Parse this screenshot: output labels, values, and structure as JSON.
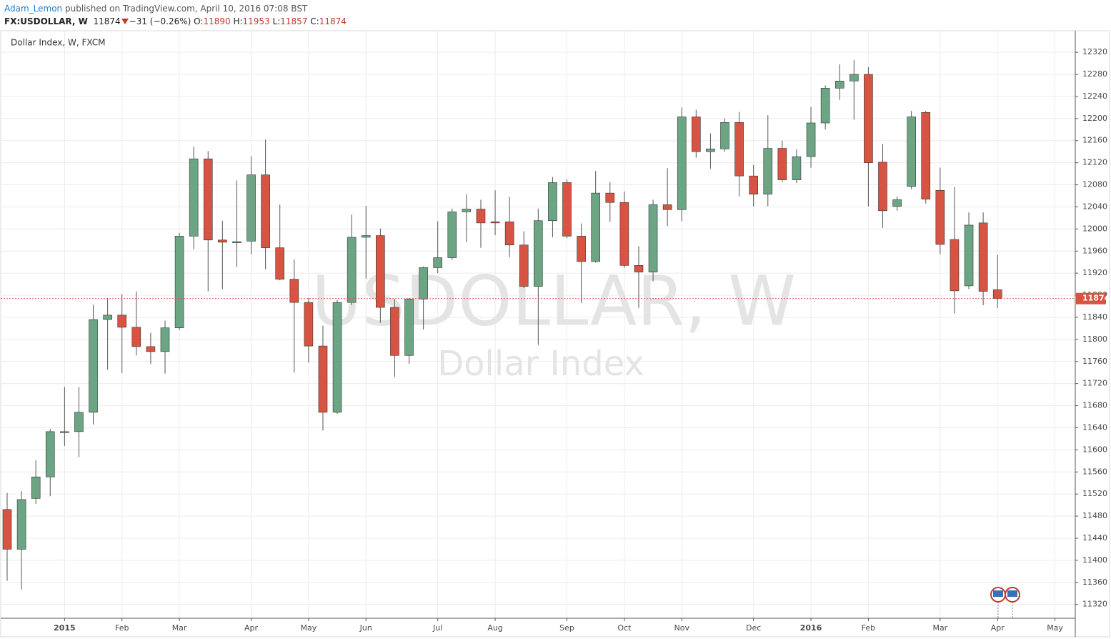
{
  "header": {
    "author": "Adam_Lemon",
    "published": "published on TradingView.com, April 10, 2016 07:08 BST",
    "symbol": "FX:USDOLLAR, W",
    "change": "−31 (−0.26%)",
    "ohlc_labels": [
      "O:",
      "H:",
      "L:",
      "C:"
    ]
  },
  "chart_data": {
    "type": "candlestick",
    "title": "Dollar Index, W, FXCM",
    "watermark": "USDOLLAR, W",
    "watermark_subtitle": "Dollar Index",
    "categories": [
      null,
      null,
      null,
      null,
      "2015",
      null,
      null,
      null,
      "Feb",
      null,
      null,
      null,
      "Mar",
      null,
      null,
      null,
      null,
      "Apr",
      null,
      null,
      null,
      "May",
      null,
      null,
      null,
      "Jun",
      null,
      null,
      null,
      null,
      "Jul",
      null,
      null,
      null,
      "Aug",
      null,
      null,
      null,
      null,
      "Sep",
      null,
      null,
      null,
      "Oct",
      null,
      null,
      null,
      "Nov",
      null,
      null,
      null,
      null,
      "Dec",
      null,
      null,
      null,
      "2016",
      null,
      null,
      null,
      "Feb",
      null,
      null,
      null,
      null,
      "Mar",
      null,
      null,
      null,
      "Apr",
      null,
      null,
      null,
      "May",
      null
    ],
    "open": [
      11492,
      11420,
      11512,
      11551,
      11632,
      11633,
      11668,
      11836,
      11844,
      11822,
      11787,
      11778,
      11821,
      11987,
      12127,
      11980,
      11976,
      11978,
      12098,
      11966,
      11909,
      11867,
      11788,
      11668,
      11867,
      11985,
      11988,
      11858,
      11771,
      11873,
      11930,
      11948,
      12031,
      12036,
      12013,
      12013,
      11971,
      11896,
      12015,
      12084,
      11987,
      11941,
      12065,
      12048,
      11934,
      11922,
      12044,
      12035,
      12203,
      12140,
      12145,
      12193,
      12096,
      12063,
      12146,
      12089,
      12131,
      12192,
      12255,
      12268,
      12280,
      12121,
      12041,
      12077,
      12211,
      12070,
      11981,
      11897,
      12011,
      11890,
      null,
      null,
      null,
      null,
      null
    ],
    "high": [
      11522,
      11525,
      11581,
      11638,
      11714,
      11714,
      11863,
      11875,
      11882,
      11887,
      11812,
      11834,
      11993,
      12149,
      12141,
      12015,
      12088,
      12132,
      12162,
      12044,
      11945,
      11875,
      11825,
      11871,
      12026,
      12042,
      12001,
      11873,
      11875,
      11932,
      12014,
      12037,
      12063,
      12053,
      12070,
      12058,
      11996,
      12037,
      12094,
      12090,
      12010,
      12105,
      12085,
      12068,
      11969,
      12053,
      12110,
      12220,
      12216,
      12173,
      12200,
      12212,
      12116,
      12206,
      12160,
      12144,
      12221,
      12260,
      12298,
      12306,
      12293,
      12154,
      12059,
      12214,
      12214,
      12111,
      12076,
      12030,
      12030,
      11953,
      null,
      null,
      null,
      null,
      null
    ],
    "low": [
      11363,
      11347,
      11502,
      11516,
      11607,
      11587,
      11646,
      11745,
      11739,
      11771,
      11756,
      11738,
      11817,
      11963,
      11887,
      11891,
      11931,
      11954,
      11927,
      11907,
      11740,
      11758,
      11635,
      11665,
      11862,
      11910,
      11830,
      11732,
      11756,
      11818,
      11920,
      11944,
      11976,
      11966,
      11989,
      11949,
      11893,
      11790,
      11985,
      11983,
      11866,
      11939,
      12013,
      11930,
      11857,
      11905,
      12005,
      12014,
      12129,
      12109,
      12140,
      12059,
      12041,
      12041,
      12085,
      12083,
      12111,
      12180,
      12234,
      12198,
      12041,
      12002,
      12033,
      12072,
      12046,
      11954,
      11847,
      11891,
      11862,
      11857,
      null,
      null,
      null,
      null,
      null
    ],
    "close": [
      11420,
      11510,
      11551,
      11633,
      11633,
      11668,
      11836,
      11844,
      11822,
      11787,
      11778,
      11821,
      11987,
      12127,
      11980,
      11976,
      11977,
      12098,
      11966,
      11909,
      11867,
      11788,
      11668,
      11867,
      11985,
      11988,
      11858,
      11771,
      11873,
      11930,
      11948,
      12031,
      12036,
      12011,
      12011,
      11971,
      11896,
      12015,
      12084,
      11987,
      11941,
      12065,
      12048,
      11934,
      11922,
      12044,
      12035,
      12203,
      12140,
      12145,
      12193,
      12096,
      12063,
      12146,
      12089,
      12131,
      12192,
      12255,
      12268,
      12280,
      12120,
      12033,
      12053,
      12203,
      12054,
      11972,
      11888,
      12007,
      11887,
      11874,
      null,
      null,
      null,
      null,
      null
    ],
    "up_color": "#6ba583",
    "down_color": "#d75442",
    "last_price_color": "#d75442",
    "ylim": [
      11295,
      12359
    ],
    "yticks": [
      11320,
      11360,
      11400,
      11440,
      11480,
      11520,
      11560,
      11600,
      11640,
      11680,
      11720,
      11760,
      11800,
      11840,
      11880,
      11920,
      11960,
      12000,
      12040,
      12080,
      12120,
      12160,
      12200,
      12240,
      12280,
      12320
    ],
    "grid": true
  }
}
